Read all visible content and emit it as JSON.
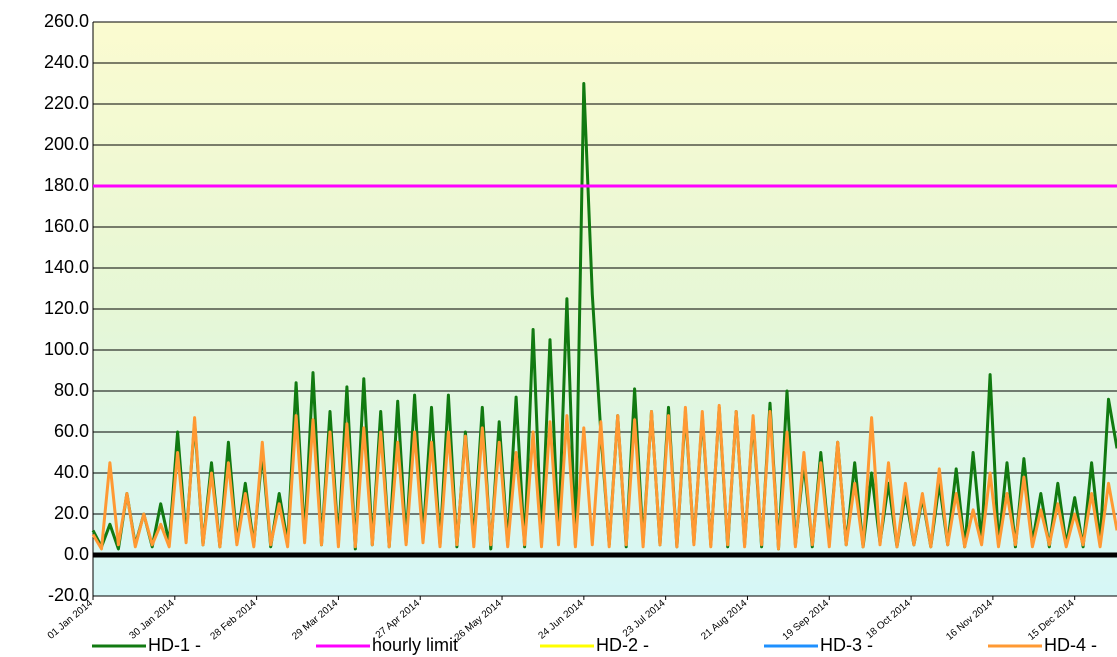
{
  "chart_data": {
    "type": "line",
    "xlim": [
      0,
      363
    ],
    "xticks": [
      {
        "value": 0,
        "label": "01 Jan 2014"
      },
      {
        "value": 29,
        "label": "30 Jan 2014"
      },
      {
        "value": 58,
        "label": "28 Feb 2014"
      },
      {
        "value": 87,
        "label": "29 Mar 2014"
      },
      {
        "value": 116,
        "label": "27 Apr 2014"
      },
      {
        "value": 145,
        "label": "26 May 2014"
      },
      {
        "value": 174,
        "label": "24 Jun 2014"
      },
      {
        "value": 203,
        "label": "23 Jul 2014"
      },
      {
        "value": 232,
        "label": "21 Aug 2014"
      },
      {
        "value": 261,
        "label": "19 Sep 2014"
      },
      {
        "value": 290,
        "label": "18 Oct 2014"
      },
      {
        "value": 319,
        "label": "16 Nov 2014"
      },
      {
        "value": 348,
        "label": "15 Dec 2014"
      }
    ],
    "ylim": [
      -20,
      260
    ],
    "yticks": [
      {
        "value": -20,
        "label": "-20.0"
      },
      {
        "value": 0,
        "label": "0.0"
      },
      {
        "value": 20,
        "label": "20.0"
      },
      {
        "value": 40,
        "label": "40.0"
      },
      {
        "value": 60,
        "label": "60.0"
      },
      {
        "value": 80,
        "label": "80.0"
      },
      {
        "value": 100,
        "label": "100.0"
      },
      {
        "value": 120,
        "label": "120.0"
      },
      {
        "value": 140,
        "label": "140.0"
      },
      {
        "value": 160,
        "label": "160.0"
      },
      {
        "value": 180,
        "label": "180.0"
      },
      {
        "value": 200,
        "label": "200.0"
      },
      {
        "value": 220,
        "label": "220.0"
      },
      {
        "value": 240,
        "label": "240.0"
      },
      {
        "value": 260,
        "label": "260.0"
      }
    ],
    "grid": true,
    "series": [
      {
        "name": "HD-1 -",
        "color": "#117a11",
        "x": [
          0,
          3,
          6,
          9,
          12,
          15,
          18,
          21,
          24,
          27,
          30,
          33,
          36,
          39,
          42,
          45,
          48,
          51,
          54,
          57,
          60,
          63,
          66,
          69,
          72,
          75,
          78,
          81,
          84,
          87,
          90,
          93,
          96,
          99,
          102,
          105,
          108,
          111,
          114,
          117,
          120,
          123,
          126,
          129,
          132,
          135,
          138,
          141,
          144,
          147,
          150,
          153,
          156,
          159,
          162,
          165,
          168,
          171,
          174,
          177,
          180,
          183,
          186,
          189,
          192,
          195,
          198,
          201,
          204,
          207,
          210,
          213,
          216,
          219,
          222,
          225,
          228,
          231,
          234,
          237,
          240,
          243,
          246,
          249,
          252,
          255,
          258,
          261,
          264,
          267,
          270,
          273,
          276,
          279,
          282,
          285,
          288,
          291,
          294,
          297,
          300,
          303,
          306,
          309,
          312,
          315,
          318,
          321,
          324,
          327,
          330,
          333,
          336,
          339,
          342,
          345,
          348,
          351,
          354,
          357,
          360,
          363
        ],
        "values": [
          12,
          4,
          15,
          3,
          30,
          5,
          20,
          4,
          25,
          6,
          60,
          8,
          65,
          5,
          45,
          4,
          55,
          6,
          35,
          5,
          50,
          4,
          30,
          6,
          84,
          8,
          89,
          5,
          70,
          6,
          82,
          3,
          86,
          5,
          70,
          4,
          75,
          6,
          78,
          8,
          72,
          5,
          78,
          4,
          60,
          7,
          72,
          3,
          65,
          5,
          77,
          4,
          110,
          6,
          105,
          8,
          125,
          5,
          230,
          127,
          60,
          5,
          68,
          4,
          81,
          6,
          70,
          5,
          72,
          4,
          70,
          6,
          68,
          5,
          72,
          4,
          70,
          5,
          66,
          4,
          74,
          3,
          80,
          5,
          45,
          4,
          50,
          6,
          55,
          5,
          45,
          4,
          40,
          6,
          35,
          4,
          30,
          5,
          28,
          4,
          35,
          5,
          42,
          4,
          50,
          6,
          88,
          5,
          45,
          4,
          47,
          6,
          30,
          4,
          35,
          5,
          28,
          4,
          45,
          6,
          76,
          52
        ]
      },
      {
        "name": "hourly limit",
        "color": "#ff00ff",
        "x": [
          0,
          363
        ],
        "values": [
          180,
          180
        ]
      },
      {
        "name": "HD-2 -",
        "color": "#ffff00"
      },
      {
        "name": "HD-3 -",
        "color": "#1e90ff"
      },
      {
        "name": "HD-4 -",
        "color": "#ff9933",
        "x": [
          0,
          3,
          6,
          9,
          12,
          15,
          18,
          21,
          24,
          27,
          30,
          33,
          36,
          39,
          42,
          45,
          48,
          51,
          54,
          57,
          60,
          63,
          66,
          69,
          72,
          75,
          78,
          81,
          84,
          87,
          90,
          93,
          96,
          99,
          102,
          105,
          108,
          111,
          114,
          117,
          120,
          123,
          126,
          129,
          132,
          135,
          138,
          141,
          144,
          147,
          150,
          153,
          156,
          159,
          162,
          165,
          168,
          171,
          174,
          177,
          180,
          183,
          186,
          189,
          192,
          195,
          198,
          201,
          204,
          207,
          210,
          213,
          216,
          219,
          222,
          225,
          228,
          231,
          234,
          237,
          240,
          243,
          246,
          249,
          252,
          255,
          258,
          261,
          264,
          267,
          270,
          273,
          276,
          279,
          282,
          285,
          288,
          291,
          294,
          297,
          300,
          303,
          306,
          309,
          312,
          315,
          318,
          321,
          324,
          327,
          330,
          333,
          336,
          339,
          342,
          345,
          348,
          351,
          354,
          357,
          360,
          363
        ],
        "values": [
          10,
          3,
          45,
          5,
          30,
          4,
          20,
          5,
          15,
          4,
          50,
          6,
          67,
          5,
          40,
          4,
          45,
          5,
          30,
          4,
          55,
          5,
          25,
          4,
          68,
          6,
          66,
          5,
          60,
          4,
          64,
          4,
          62,
          5,
          60,
          4,
          55,
          5,
          60,
          6,
          55,
          4,
          60,
          5,
          58,
          4,
          62,
          5,
          55,
          4,
          50,
          5,
          60,
          4,
          65,
          5,
          68,
          4,
          62,
          5,
          65,
          4,
          68,
          5,
          66,
          4,
          70,
          5,
          68,
          4,
          72,
          5,
          70,
          4,
          73,
          5,
          70,
          4,
          68,
          5,
          70,
          3,
          60,
          4,
          50,
          5,
          45,
          4,
          55,
          5,
          35,
          4,
          67,
          5,
          45,
          4,
          35,
          5,
          30,
          4,
          42,
          5,
          30,
          4,
          22,
          5,
          40,
          4,
          30,
          5,
          38,
          4,
          22,
          5,
          25,
          4,
          20,
          5,
          30,
          4,
          35,
          12
        ]
      }
    ]
  }
}
